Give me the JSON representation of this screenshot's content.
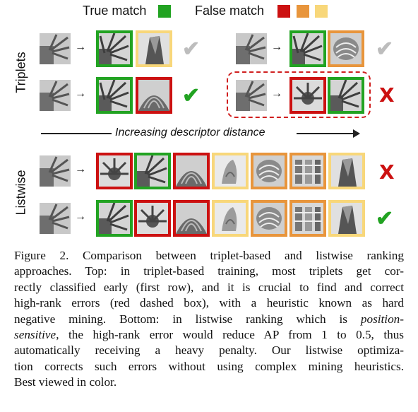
{
  "legend": {
    "true_label": "True match",
    "false_label": "False match",
    "colors": {
      "green": "#22a322",
      "red": "#cc1111",
      "orange": "#e8953c",
      "yellow": "#f8d77a"
    }
  },
  "labels": {
    "triplets": "Triplets",
    "listwise": "Listwise",
    "distance": "Increasing descriptor distance"
  },
  "marks": {
    "check": "✔",
    "cross": "X"
  },
  "caption": {
    "line1": "Figure 2. Comparison between triplet-based and listwise ranking",
    "line2": "approaches. Top: in triplet-based training, most triplets get cor-",
    "line3": "rectly classified early (first row), and it is crucial to find and correct",
    "line4": "high-rank errors (red dashed box), with a heuristic known as hard",
    "line5_pre": "negative mining. Bottom: in listwise ranking which is ",
    "line5_em": "position-",
    "line6_em": "sensitive",
    "line6_post": ", the high-rank error would reduce AP from 1 to 0.5, thus",
    "line7": "automatically receiving a heavy penalty. Our listwise optimiza-",
    "line8": "tion corrects such errors without using complex mining heuristics.",
    "line9": "Best viewed in color."
  }
}
